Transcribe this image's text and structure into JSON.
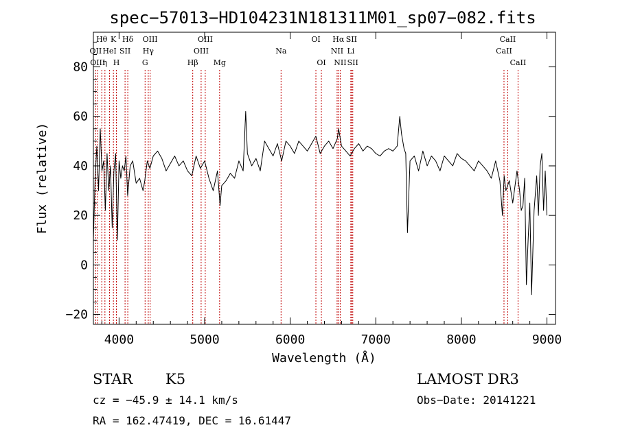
{
  "chart_data": {
    "type": "line",
    "title": "spec−57013−HD104231N181311M01_sp07−082.fits",
    "xlabel": "Wavelength (Å)",
    "ylabel": "Flux (relative)",
    "xlim": [
      3700,
      9100
    ],
    "ylim": [
      -24,
      94
    ],
    "xticks": [
      4000,
      5000,
      6000,
      7000,
      8000,
      9000
    ],
    "yticks": [
      -20,
      0,
      20,
      40,
      60,
      80
    ],
    "grid": false,
    "series": [
      {
        "x": [
          3700,
          3720,
          3740,
          3760,
          3780,
          3800,
          3820,
          3840,
          3860,
          3880,
          3900,
          3920,
          3940,
          3960,
          3980,
          4000,
          4020,
          4040,
          4060,
          4080,
          4100,
          4130,
          4160,
          4200,
          4240,
          4280,
          4300,
          4330,
          4360,
          4400,
          4450,
          4500,
          4550,
          4600,
          4650,
          4700,
          4750,
          4800,
          4850,
          4900,
          4950,
          5000,
          5050,
          5100,
          5150,
          5180,
          5200,
          5250,
          5300,
          5350,
          5400,
          5450,
          5480,
          5500,
          5550,
          5600,
          5650,
          5700,
          5750,
          5800,
          5850,
          5900,
          5950,
          6000,
          6050,
          6100,
          6150,
          6200,
          6250,
          6300,
          6350,
          6400,
          6450,
          6500,
          6550,
          6565,
          6600,
          6650,
          6700,
          6750,
          6800,
          6850,
          6900,
          6950,
          7000,
          7050,
          7100,
          7150,
          7200,
          7250,
          7280,
          7300,
          7330,
          7350,
          7370,
          7400,
          7450,
          7500,
          7550,
          7600,
          7650,
          7700,
          7750,
          7800,
          7850,
          7900,
          7950,
          8000,
          8050,
          8100,
          8150,
          8200,
          8250,
          8300,
          8350,
          8400,
          8450,
          8480,
          8500,
          8520,
          8540,
          8560,
          8600,
          8650,
          8680,
          8700,
          8720,
          8740,
          8760,
          8780,
          8800,
          8820,
          8850,
          8880,
          8900,
          8920,
          8940,
          8960,
          8980,
          9000
        ],
        "values": [
          10,
          35,
          48,
          30,
          55,
          38,
          42,
          22,
          45,
          30,
          40,
          15,
          38,
          45,
          10,
          42,
          35,
          40,
          38,
          44,
          28,
          40,
          42,
          33,
          35,
          30,
          34,
          42,
          39,
          44,
          46,
          43,
          38,
          41,
          44,
          40,
          42,
          38,
          36,
          44,
          39,
          42,
          35,
          30,
          38,
          24,
          32,
          34,
          37,
          35,
          42,
          38,
          62,
          45,
          40,
          43,
          38,
          50,
          47,
          44,
          49,
          42,
          50,
          48,
          45,
          50,
          48,
          46,
          49,
          52,
          45,
          48,
          50,
          47,
          51,
          55,
          48,
          46,
          44,
          47,
          49,
          46,
          48,
          47,
          45,
          44,
          46,
          47,
          46,
          48,
          60,
          53,
          47,
          45,
          13,
          42,
          44,
          38,
          46,
          40,
          44,
          42,
          38,
          44,
          42,
          40,
          45,
          43,
          42,
          40,
          38,
          42,
          40,
          38,
          35,
          42,
          34,
          20,
          36,
          30,
          32,
          34,
          25,
          38,
          30,
          22,
          24,
          35,
          -8,
          10,
          25,
          -12,
          22,
          36,
          20,
          40,
          45,
          22,
          38,
          20
        ]
      }
    ],
    "spectral_lines": [
      {
        "label": "Hθ",
        "x": 3798,
        "row": 0
      },
      {
        "label": "OII",
        "x": 3727,
        "row": 1
      },
      {
        "label": "OIII",
        "x": 3750,
        "row": 2
      },
      {
        "label": "K",
        "x": 3934,
        "row": 0
      },
      {
        "label": "HeI",
        "x": 3889,
        "row": 1
      },
      {
        "label": "η",
        "x": 3835,
        "row": 2
      },
      {
        "label": "Hδ",
        "x": 4102,
        "row": 0
      },
      {
        "label": "SII",
        "x": 4070,
        "row": 1
      },
      {
        "label": "H",
        "x": 3969,
        "row": 2
      },
      {
        "label": "OIII",
        "x": 4363,
        "row": 0
      },
      {
        "label": "Hγ",
        "x": 4341,
        "row": 1
      },
      {
        "label": "G",
        "x": 4304,
        "row": 2
      },
      {
        "label": "OIII",
        "x": 5007,
        "row": 0
      },
      {
        "label": "OIII",
        "x": 4959,
        "row": 1
      },
      {
        "label": "Hβ",
        "x": 4861,
        "row": 2
      },
      {
        "label": "Mg",
        "x": 5175,
        "row": 2
      },
      {
        "label": "Na",
        "x": 5893,
        "row": 1
      },
      {
        "label": "OI",
        "x": 6300,
        "row": 0
      },
      {
        "label": "OI",
        "x": 6364,
        "row": 2
      },
      {
        "label": "Hα",
        "x": 6563,
        "row": 0
      },
      {
        "label": "NII",
        "x": 6548,
        "row": 1
      },
      {
        "label": "NII",
        "x": 6584,
        "row": 2
      },
      {
        "label": "SII",
        "x": 6716,
        "row": 0
      },
      {
        "label": "Li",
        "x": 6708,
        "row": 1
      },
      {
        "label": "SII",
        "x": 6731,
        "row": 2
      },
      {
        "label": "CaII",
        "x": 8542,
        "row": 0
      },
      {
        "label": "CaII",
        "x": 8498,
        "row": 1
      },
      {
        "label": "CaII",
        "x": 8662,
        "row": 2
      }
    ]
  },
  "info": {
    "object_class": "STAR",
    "subclass": "K5",
    "survey": "LAMOST DR3",
    "redshift": "cz = −45.9 ± 14.1 km/s",
    "obs_date": "Obs−Date: 20141221",
    "coords": "RA = 162.47419, DEC =  16.61447"
  },
  "colors": {
    "spectrum": "#000000",
    "marker_lines": "#c00000",
    "background": "#ffffff"
  }
}
